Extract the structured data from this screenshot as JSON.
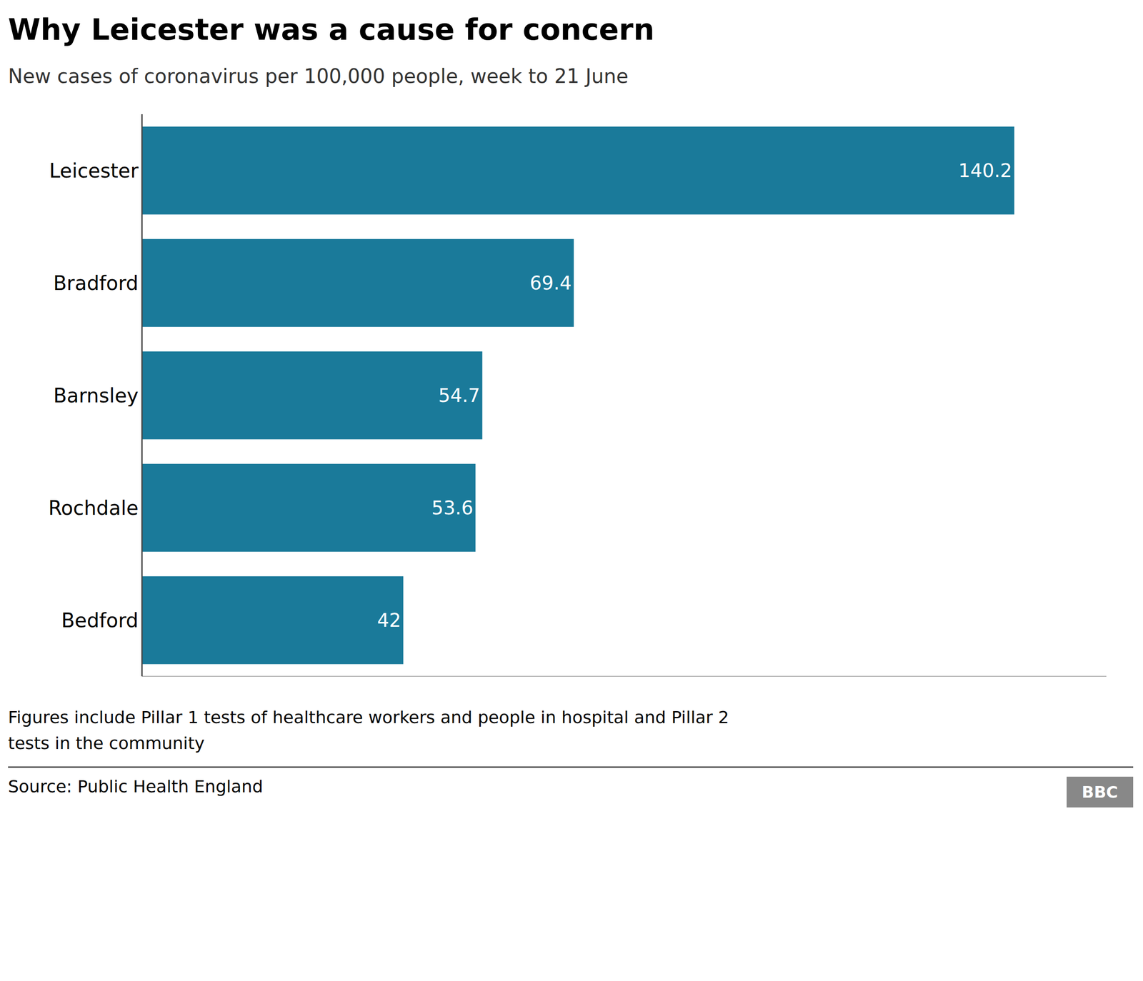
{
  "chart_data": {
    "type": "bar",
    "orientation": "horizontal",
    "title": "Why Leicester was a cause for concern",
    "subtitle": "New cases of coronavirus per 100,000 people, week to 21 June",
    "categories": [
      "Leicester",
      "Bradford",
      "Barnsley",
      "Rochdale",
      "Bedford"
    ],
    "values": [
      140.2,
      69.4,
      54.7,
      53.6,
      42
    ],
    "color": "#1a7a9a",
    "xlim": [
      0,
      155
    ],
    "data_labels": true,
    "tick_labels": "y",
    "grid": false,
    "annotations": [
      "Figures include Pillar 1 tests of healthcare workers and people in hospital and Pillar 2",
      "tests in the community",
      "Source: Public Health England",
      "BBC"
    ]
  }
}
